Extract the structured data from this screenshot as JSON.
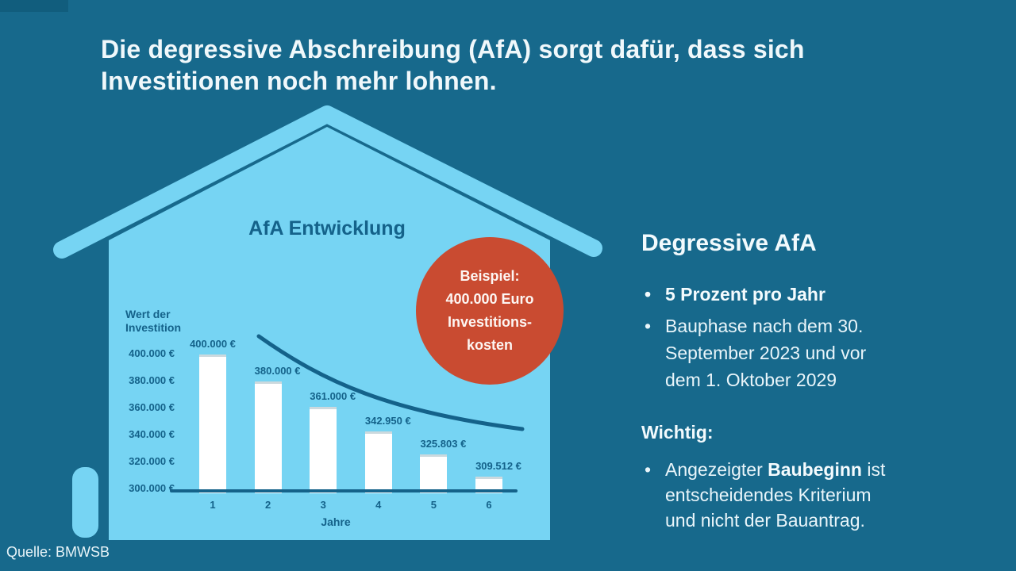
{
  "colors": {
    "background": "#17698c",
    "house_light_blue": "#76d4f3",
    "chart_dark_teal": "#14628a",
    "badge_red": "#c94b31",
    "text_white": "#f2fafd"
  },
  "header": {
    "title_line1": "Die degressive Abschreibung (AfA) sorgt dafür, dass sich",
    "title_line2": "Investitionen noch mehr lohnen."
  },
  "chart_data": {
    "type": "bar",
    "title": "AfA Entwicklung",
    "xlabel": "Jahre",
    "ylabel_lines": [
      "Wert der",
      "Investition"
    ],
    "categories": [
      "1",
      "2",
      "3",
      "4",
      "5",
      "6"
    ],
    "values": [
      400000,
      380000,
      361000,
      342950,
      325803,
      309512
    ],
    "bar_labels": [
      "400.000 €",
      "380.000 €",
      "361.000 €",
      "342.950 €",
      "325.803 €",
      "309.512 €"
    ],
    "yticks": [
      400000,
      380000,
      360000,
      340000,
      320000,
      300000
    ],
    "ytick_labels": [
      "400.000 €",
      "380.000 €",
      "360.000 €",
      "340.000 €",
      "320.000 €",
      "300.000 €"
    ],
    "ylim": [
      300000,
      400000
    ],
    "grid": false,
    "legend": "none",
    "overlay": "smooth decreasing depreciation curve above the bars",
    "bar_color": "#ffffff"
  },
  "badge": {
    "lines": [
      "Beispiel:",
      "400.000 Euro",
      "Investitions-",
      "kosten"
    ]
  },
  "panel": {
    "heading": "Degressive AfA",
    "bullet_char": "•",
    "item1": "5 Prozent pro Jahr",
    "item2_line1": "Bauphase nach dem 30.",
    "item2_line2": "September 2023 und vor",
    "item2_line3": "dem 1. Oktober 2029",
    "subheading": "Wichtig:",
    "item3_prefix": "Angezeigter ",
    "item3_bold": "Baubeginn",
    "item3_suffix": " ist",
    "item3_line2": "entscheidendes Kriterium",
    "item3_line3": "und nicht der Bauantrag."
  },
  "footer": {
    "source": "Quelle: BMWSB"
  }
}
